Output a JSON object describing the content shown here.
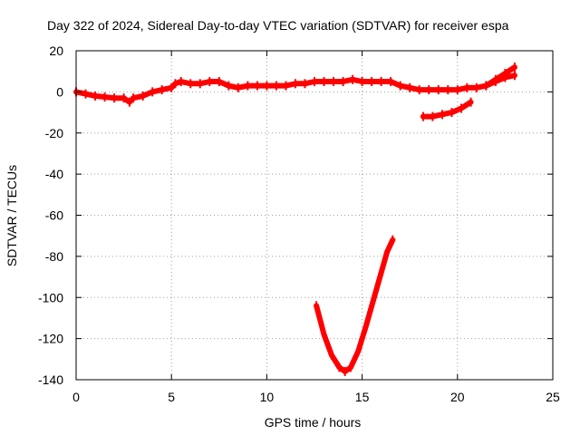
{
  "chart_data": {
    "type": "scatter",
    "title": "Day 322 of 2024, Sidereal Day-to-day VTEC variation (SDTVAR) for receiver espa",
    "xlabel": "GPS time / hours",
    "ylabel": "SDTVAR / TECUs",
    "xlim": [
      0,
      25
    ],
    "ylim": [
      -140,
      20
    ],
    "xticks": [
      0,
      5,
      10,
      15,
      20,
      25
    ],
    "yticks": [
      -140,
      -120,
      -100,
      -80,
      -60,
      -40,
      -20,
      0,
      20
    ],
    "grid": true,
    "series_color": "#ff0000",
    "series": [
      {
        "name": "main-track",
        "x": [
          0,
          0.5,
          1,
          1.5,
          2,
          2.5,
          2.8,
          3,
          3.5,
          4,
          4.5,
          5,
          5.2,
          5.5,
          6,
          6.5,
          7,
          7.5,
          8,
          8.5,
          9,
          9.5,
          10,
          10.5,
          11,
          11.5,
          12,
          12.5,
          13,
          13.5,
          14,
          14.5,
          15,
          15.5,
          16,
          16.5,
          17,
          17.5,
          18,
          18.5,
          19,
          19.5,
          20,
          20.5,
          21,
          21.5,
          22,
          22.5,
          23
        ],
        "y": [
          0,
          -1,
          -2,
          -2.5,
          -3,
          -3,
          -5,
          -3,
          -2,
          0,
          1,
          2,
          4,
          5,
          4,
          4,
          5,
          5,
          3,
          2,
          3,
          3,
          3,
          3,
          3,
          4,
          4,
          5,
          5,
          5,
          5,
          6,
          5,
          5,
          5,
          5,
          3,
          2,
          1,
          1,
          1,
          1,
          1,
          2,
          2,
          3,
          6,
          9,
          12
        ]
      },
      {
        "name": "upper-spread",
        "x": [
          21.5,
          22,
          22.5,
          23
        ],
        "y": [
          3,
          5,
          7,
          8
        ]
      },
      {
        "name": "short-track",
        "x": [
          18.2,
          18.7,
          19.2,
          19.7,
          20.2,
          20.7
        ],
        "y": [
          -12,
          -12,
          -11,
          -10,
          -8,
          -5
        ]
      },
      {
        "name": "deep-dip",
        "x": [
          12.6,
          13,
          13.4,
          13.8,
          14.1,
          14.4,
          14.8,
          15.2,
          15.6,
          16,
          16.3,
          16.6
        ],
        "y": [
          -104,
          -118,
          -128,
          -134,
          -136,
          -134,
          -126,
          -114,
          -101,
          -88,
          -78,
          -72
        ]
      }
    ]
  }
}
